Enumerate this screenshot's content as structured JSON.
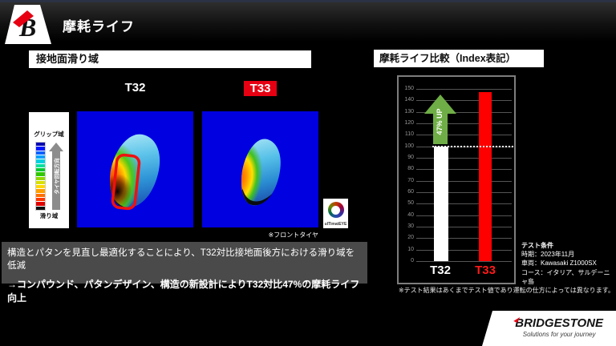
{
  "colors": {
    "accent_red": "#e60012",
    "arrow_green": "#6fae46",
    "heatmap_background_blue": "#0000e0",
    "summary_box_gray": "#4a4a4a"
  },
  "header": {
    "title": "摩耗ライフ"
  },
  "left_panel": {
    "section_title": "接地面滑り域",
    "t32_label": "T32",
    "t33_label": "T33",
    "legend": {
      "top": "グリップ域",
      "bottom": "滑り域",
      "arrow_label": "タイヤ回転方向",
      "scale_colors": [
        "#0000b0",
        "#0018ff",
        "#0060ff",
        "#00a0ff",
        "#00d0e0",
        "#00e0a0",
        "#00c830",
        "#30c800",
        "#90d800",
        "#d8e000",
        "#ffd800",
        "#ffa000",
        "#ff7000",
        "#ff3800",
        "#e00000",
        "#101010"
      ]
    },
    "front_tire_note": "※フロントタイヤ",
    "ultimat_eye_label": "ulTimatEYE"
  },
  "summary": {
    "line1": "構造とパタンを見直し最適化することにより、T32対比接地面後方における滑り域を低減",
    "line2": "→コンパウンド、パタンデザイン、構造の新設計によりT32対比47%の摩耗ライフ向上"
  },
  "right_panel": {
    "section_title": "摩耗ライフ比較（Index表記）",
    "test_conditions": {
      "title": "テスト条件",
      "lines": [
        "時期：2023年11月",
        "車両：Kawasaki Z1000SX",
        "コース：イタリア、サルデーニャ島"
      ]
    },
    "note": "※テスト結果はあくまでテスト値であり運転の仕方によっては異なります。"
  },
  "chart_data": {
    "type": "bar",
    "title": "摩耗ライフ比較（Index表記）",
    "categories": [
      "T32",
      "T33"
    ],
    "values": [
      100,
      147
    ],
    "bar_colors": [
      "#ffffff",
      "#fe0000"
    ],
    "category_label_colors": [
      "#ffffff",
      "#fe1a1a"
    ],
    "ylim": [
      0,
      150
    ],
    "ytick_step": 10,
    "reference_line": 100,
    "annotation": {
      "text": "47% UP",
      "color": "#ffffff",
      "arrow_color": "#6fae46"
    },
    "grid": true,
    "legend_position": "none",
    "background": "#000000"
  },
  "footer": {
    "brand": "BRIDGESTONE",
    "tagline": "Solutions for your journey"
  }
}
